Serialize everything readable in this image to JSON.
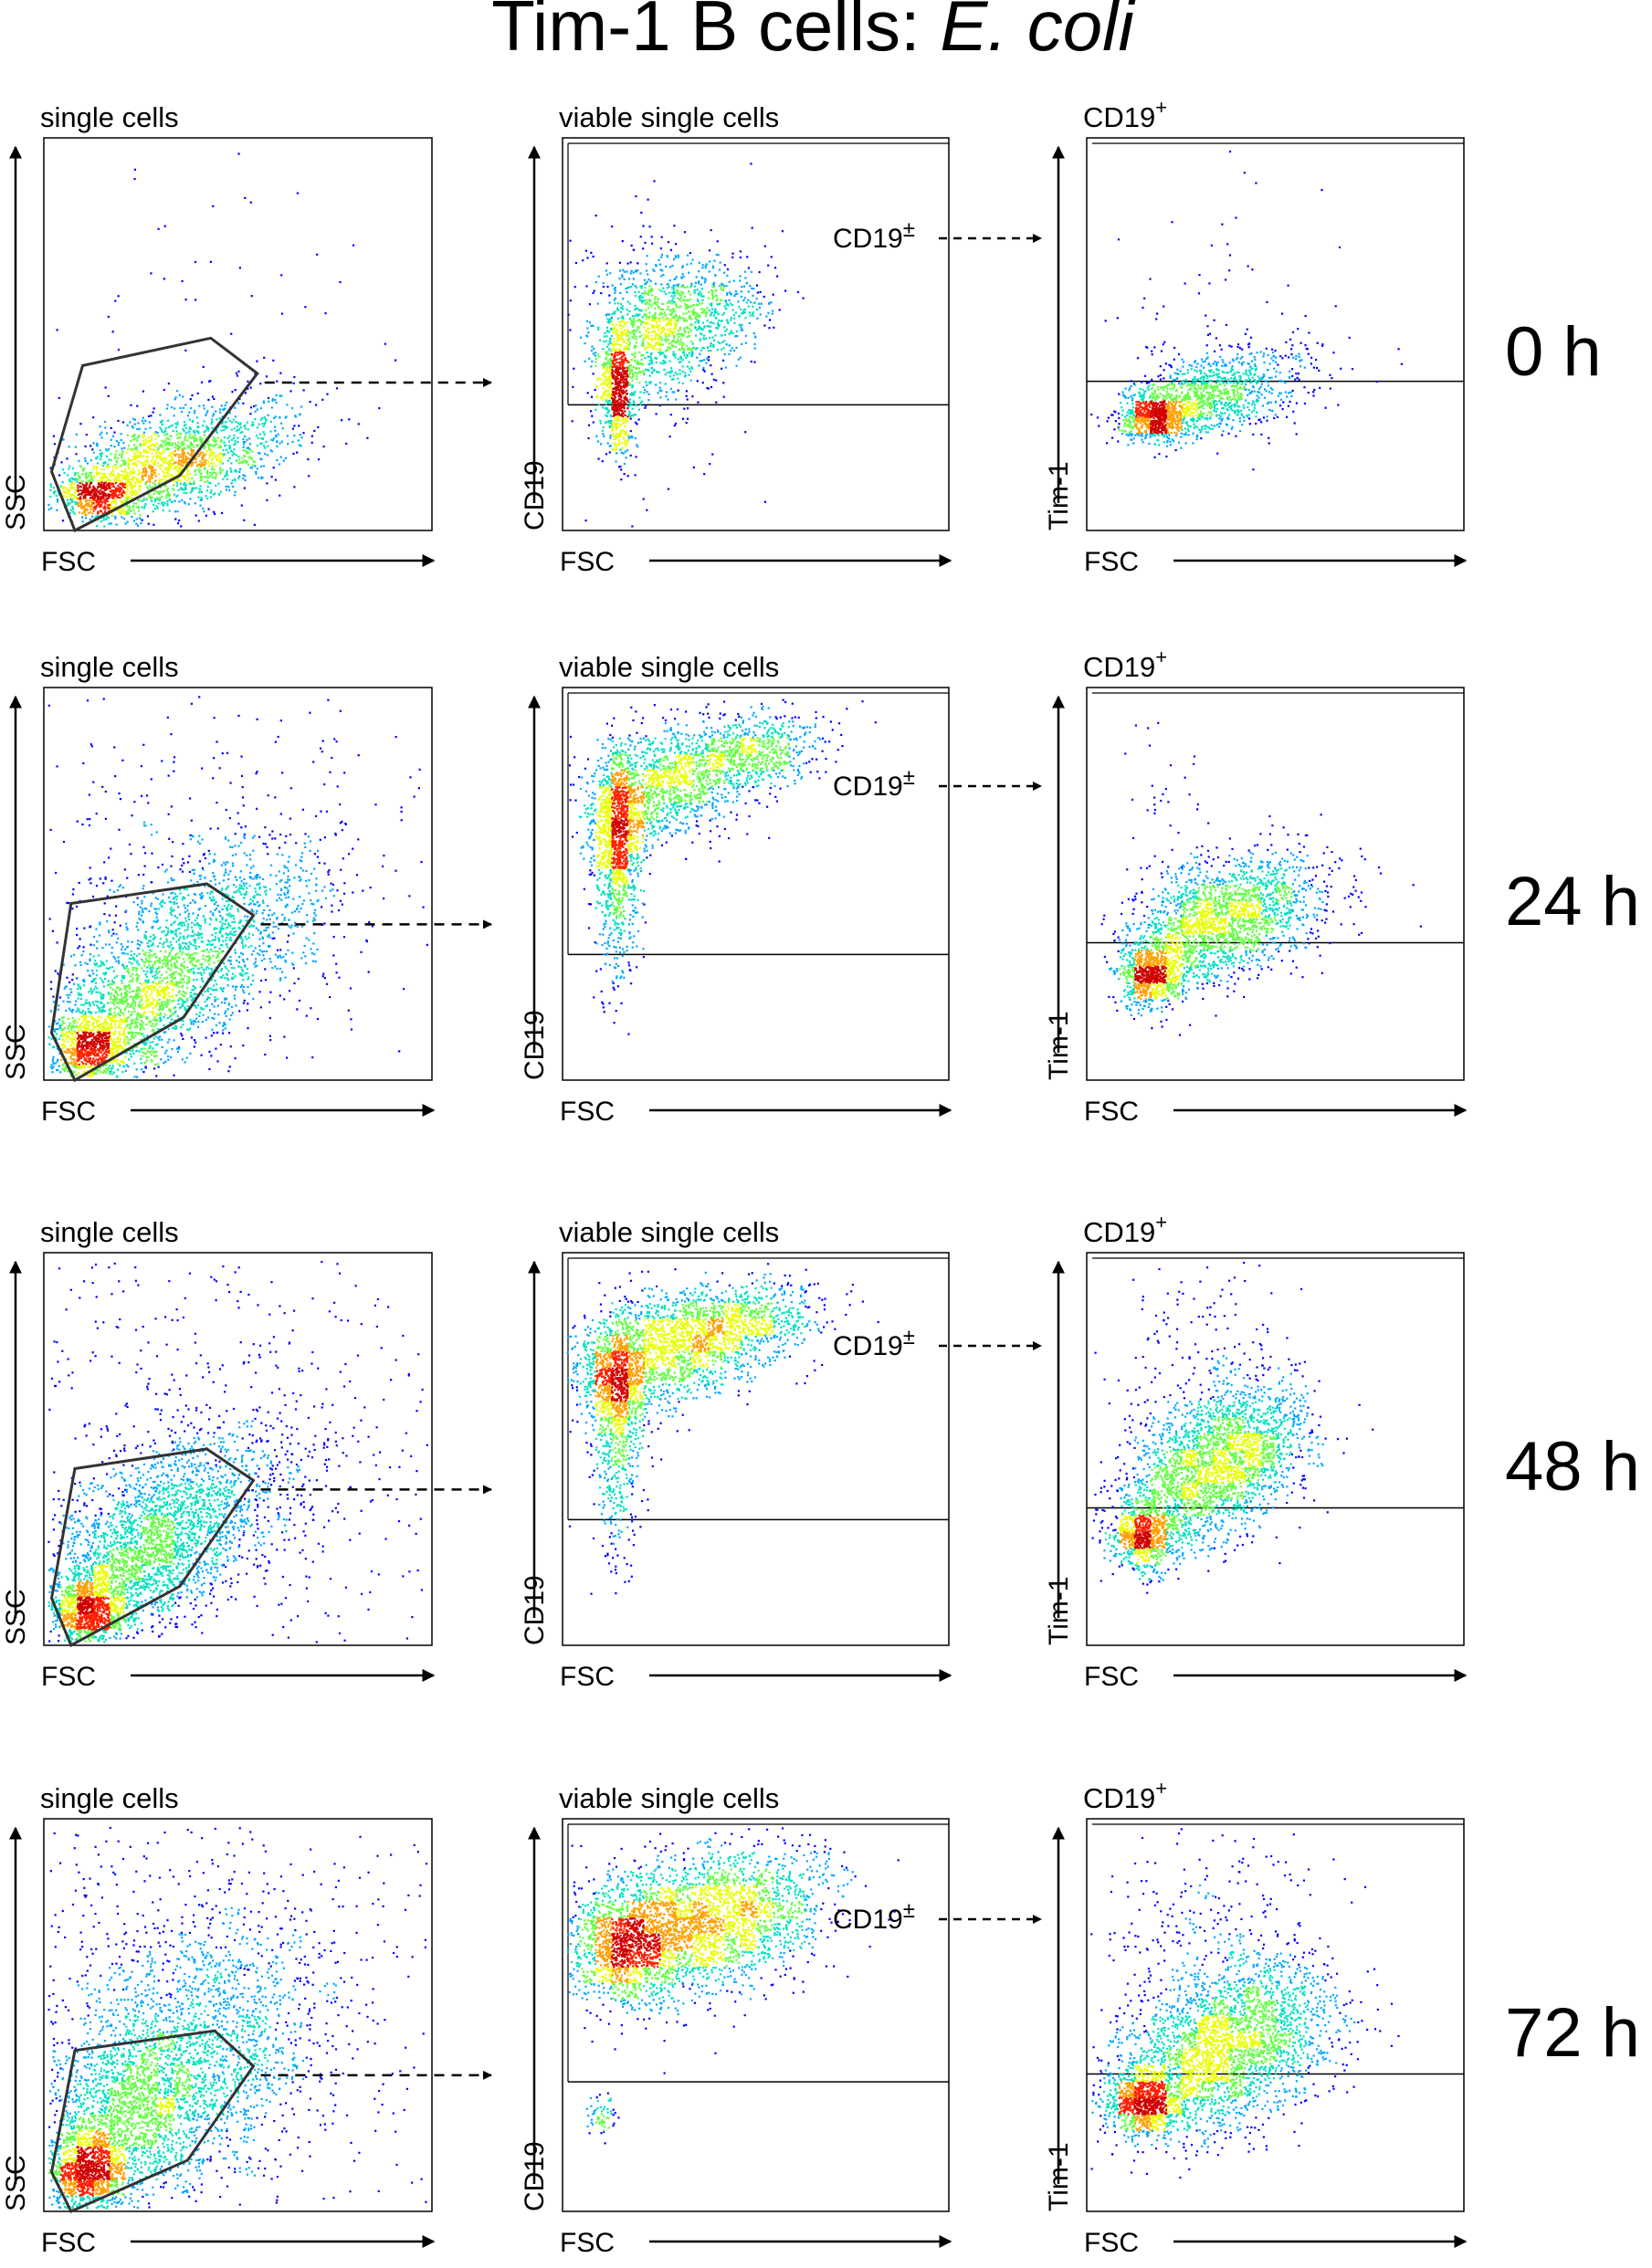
{
  "figure": {
    "title_main": "Tim-1 B cells: ",
    "title_italic": "E. coli"
  },
  "chart_data": {
    "type": "scatter",
    "description_kind": "flow-cytometry-density-plots",
    "columns": [
      {
        "plot_title": "single cells",
        "xlabel": "FSC",
        "ylabel": "SSC",
        "gate": "polygon"
      },
      {
        "plot_title": "viable single cells",
        "xlabel": "FSC",
        "ylabel": "CD19",
        "gate": "horizontal-line",
        "gate_label_main": "CD19",
        "gate_label_sup": "±"
      },
      {
        "plot_title_main": "CD19",
        "plot_title_sup": "+",
        "xlabel": "FSC",
        "ylabel": "Tim-1",
        "gate": "horizontal-line"
      }
    ],
    "rows": [
      {
        "time_label": "0 h"
      },
      {
        "time_label": "24 h"
      },
      {
        "time_label": "48 h"
      },
      {
        "time_label": "72 h"
      }
    ],
    "colormap": [
      "#0000ff",
      "#00a8ff",
      "#00e0c0",
      "#60ff40",
      "#e8ff00",
      "#ffa000",
      "#ff2000",
      "#d00000"
    ],
    "grid": false,
    "legend": "none"
  }
}
